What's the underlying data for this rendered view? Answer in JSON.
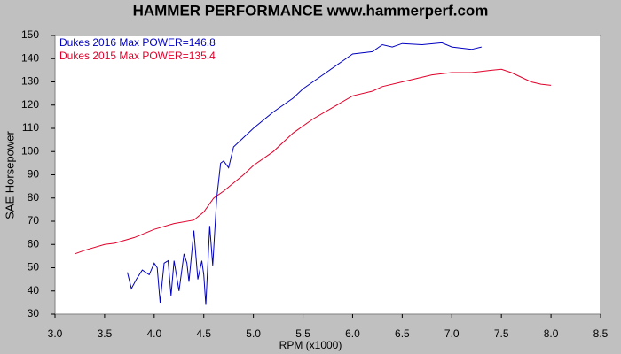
{
  "chart_data": {
    "type": "line",
    "title": "HAMMER PERFORMANCE www.hammerperf.com",
    "x_label": "RPM (x1000)",
    "y_label": "SAE Horsepower",
    "xlim": [
      3.0,
      8.5
    ],
    "xticks": [
      {
        "value": 3,
        "label": "3.0"
      },
      3.5,
      {
        "value": 4,
        "label": "4.0"
      },
      4.5,
      {
        "value": 5,
        "label": "5.0"
      },
      5.5,
      {
        "value": 6,
        "label": "6.0"
      },
      6.5,
      {
        "value": 7,
        "label": "7.0"
      },
      7.5,
      {
        "value": 8,
        "label": "8.0"
      },
      8.5
    ],
    "ylim": [
      30,
      150
    ],
    "yticks": [
      30,
      40,
      50,
      60,
      70,
      80,
      90,
      100,
      110,
      120,
      130,
      140,
      150
    ],
    "grid": false,
    "series": [
      {
        "name": "Dukes 2016   Max POWER=146.8",
        "color": "#0000c0",
        "x": [
          3.73,
          3.77,
          3.82,
          3.88,
          3.95,
          4.0,
          4.03,
          4.06,
          4.1,
          4.14,
          4.17,
          4.2,
          4.25,
          4.3,
          4.33,
          4.35,
          4.4,
          4.44,
          4.48,
          4.5,
          4.52,
          4.56,
          4.59,
          4.63,
          4.67,
          4.7,
          4.75,
          4.8,
          5.0,
          5.2,
          5.4,
          5.5,
          5.7,
          5.9,
          6.0,
          6.2,
          6.3,
          6.4,
          6.5,
          6.7,
          6.9,
          7.0,
          7.2,
          7.3
        ],
        "values": [
          48,
          41,
          45,
          49,
          47,
          52,
          50,
          35,
          52,
          53,
          38,
          53,
          40,
          56,
          52,
          44,
          66,
          45,
          53,
          47,
          34,
          68,
          51,
          80,
          95,
          96,
          93,
          102,
          110,
          117,
          123,
          127,
          133,
          139,
          142,
          143,
          146,
          145,
          146.5,
          146,
          146.8,
          145,
          144,
          145
        ]
      },
      {
        "name": "Dukes 2015   Max POWER=135.4",
        "color": "#e0002a",
        "x": [
          3.2,
          3.3,
          3.5,
          3.6,
          3.8,
          4.0,
          4.2,
          4.4,
          4.5,
          4.6,
          4.7,
          4.9,
          5.0,
          5.2,
          5.4,
          5.6,
          5.8,
          6.0,
          6.2,
          6.3,
          6.5,
          6.8,
          7.0,
          7.2,
          7.4,
          7.5,
          7.6,
          7.8,
          7.9,
          8.0
        ],
        "values": [
          56,
          57.5,
          60,
          60.5,
          63,
          66.5,
          69,
          70.5,
          74,
          80,
          83,
          90,
          94,
          100,
          108,
          114,
          119,
          124,
          126,
          128,
          130,
          133,
          134,
          134,
          135,
          135.4,
          134,
          130,
          129,
          128.5
        ]
      }
    ]
  }
}
